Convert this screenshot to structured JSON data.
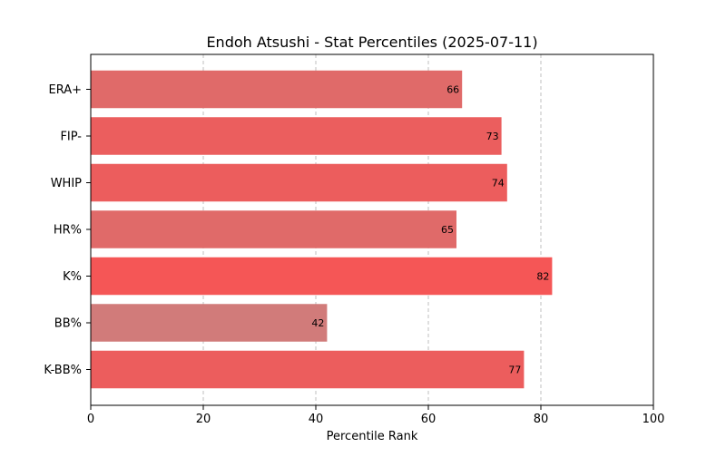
{
  "chart_data": {
    "type": "bar",
    "orientation": "horizontal",
    "title": "Endoh Atsushi - Stat Percentiles (2025-07-11)",
    "xlabel": "Percentile Rank",
    "ylabel": "",
    "xlim": [
      0,
      100
    ],
    "xticks": [
      0,
      20,
      40,
      60,
      80,
      100
    ],
    "grid": "x-dashed",
    "categories": [
      "ERA+",
      "FIP-",
      "WHIP",
      "HR%",
      "K%",
      "BB%",
      "K-BB%"
    ],
    "values": [
      66,
      73,
      74,
      65,
      82,
      42,
      77
    ],
    "colors": [
      "#e06a69",
      "#eb5e5e",
      "#ec5d5d",
      "#e06a69",
      "#f55656",
      "#d17b7a",
      "#ec5d5d"
    ]
  }
}
